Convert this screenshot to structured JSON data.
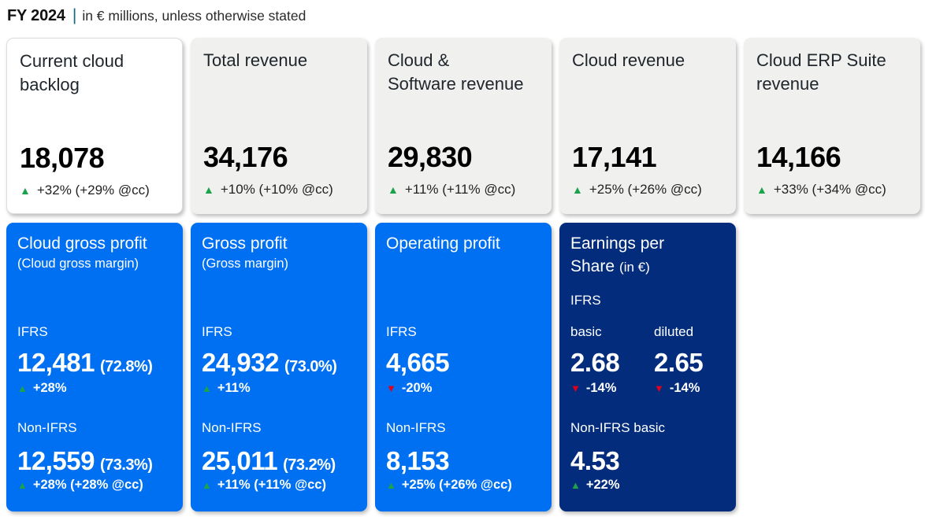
{
  "header": {
    "period": "FY 2024",
    "separator": "|",
    "subtitle": "in € millions, unless otherwise stated"
  },
  "colors": {
    "blue": "#0070f2",
    "navy": "#032c7d",
    "gray": "#f0f0ef",
    "green": "#1ca24a",
    "red": "#e0001b",
    "teal": "#17687a"
  },
  "icons": {
    "up": {
      "glyph": "▲",
      "color": "#1ca24a"
    },
    "down": {
      "glyph": "▼",
      "color": "#e0001b"
    }
  },
  "top_cards": [
    {
      "title": "Current cloud\nbacklog",
      "value": "18,078",
      "direction": "up",
      "change": "+32% (+29% @cc)"
    },
    {
      "title": "Total revenue",
      "value": "34,176",
      "direction": "up",
      "change": "+10% (+10% @cc)"
    },
    {
      "title": "Cloud &\nSoftware revenue",
      "value": "29,830",
      "direction": "up",
      "change": "+11% (+11% @cc)"
    },
    {
      "title": "Cloud revenue",
      "value": "17,141",
      "direction": "up",
      "change": "+25% (+26% @cc)"
    },
    {
      "title": "Cloud ERP Suite\nrevenue",
      "value": "14,166",
      "direction": "up",
      "change": "+33% (+34% @cc)"
    }
  ],
  "bottom_cards": [
    {
      "title": "Cloud gross profit",
      "subtitle": "(Cloud gross margin)",
      "ifrs": {
        "label": "IFRS",
        "value": "12,481",
        "margin": "(72.8%)",
        "direction": "up",
        "change": "+28%"
      },
      "non_ifrs": {
        "label": "Non-IFRS",
        "value": "12,559",
        "margin": "(73.3%)",
        "direction": "up",
        "change": "+28% (+28% @cc)"
      }
    },
    {
      "title": "Gross profit",
      "subtitle": "(Gross margin)",
      "ifrs": {
        "label": "IFRS",
        "value": "24,932",
        "margin": "(73.0%)",
        "direction": "up",
        "change": "+11%"
      },
      "non_ifrs": {
        "label": "Non-IFRS",
        "value": "25,011",
        "margin": "(73.2%)",
        "direction": "up",
        "change": "+11% (+11% @cc)"
      }
    },
    {
      "title": "Operating profit",
      "subtitle": "",
      "ifrs": {
        "label": "IFRS",
        "value": "4,665",
        "margin": "",
        "direction": "down",
        "change": "-20%"
      },
      "non_ifrs": {
        "label": "Non-IFRS",
        "value": "8,153",
        "margin": "",
        "direction": "up",
        "change": "+25% (+26% @cc)"
      }
    }
  ],
  "eps_card": {
    "title": "Earnings per\nShare",
    "unit": "(in €)",
    "ifrs_label": "IFRS",
    "basic": {
      "label": "basic",
      "value": "2.68",
      "direction": "down",
      "change": "-14%"
    },
    "diluted": {
      "label": "diluted",
      "value": "2.65",
      "direction": "down",
      "change": "-14%"
    },
    "non_ifrs": {
      "label": "Non-IFRS basic",
      "value": "4.53",
      "direction": "up",
      "change": "+22%"
    }
  },
  "chart_data": {
    "type": "table",
    "title": "FY 2024 | in € millions, unless otherwise stated",
    "metrics": [
      {
        "name": "Current cloud backlog",
        "value": 18078,
        "yoy_pct": 32,
        "yoy_cc_pct": 29
      },
      {
        "name": "Total revenue",
        "value": 34176,
        "yoy_pct": 10,
        "yoy_cc_pct": 10
      },
      {
        "name": "Cloud & Software revenue",
        "value": 29830,
        "yoy_pct": 11,
        "yoy_cc_pct": 11
      },
      {
        "name": "Cloud revenue",
        "value": 17141,
        "yoy_pct": 25,
        "yoy_cc_pct": 26
      },
      {
        "name": "Cloud ERP Suite revenue",
        "value": 14166,
        "yoy_pct": 33,
        "yoy_cc_pct": 34
      },
      {
        "name": "Cloud gross profit (IFRS)",
        "value": 12481,
        "margin_pct": 72.8,
        "yoy_pct": 28
      },
      {
        "name": "Cloud gross profit (Non-IFRS)",
        "value": 12559,
        "margin_pct": 73.3,
        "yoy_pct": 28,
        "yoy_cc_pct": 28
      },
      {
        "name": "Gross profit (IFRS)",
        "value": 24932,
        "margin_pct": 73.0,
        "yoy_pct": 11
      },
      {
        "name": "Gross profit (Non-IFRS)",
        "value": 25011,
        "margin_pct": 73.2,
        "yoy_pct": 11,
        "yoy_cc_pct": 11
      },
      {
        "name": "Operating profit (IFRS)",
        "value": 4665,
        "yoy_pct": -20
      },
      {
        "name": "Operating profit (Non-IFRS)",
        "value": 8153,
        "yoy_pct": 25,
        "yoy_cc_pct": 26
      },
      {
        "name": "EPS basic IFRS (in €)",
        "value": 2.68,
        "yoy_pct": -14
      },
      {
        "name": "EPS diluted IFRS (in €)",
        "value": 2.65,
        "yoy_pct": -14
      },
      {
        "name": "EPS basic Non-IFRS (in €)",
        "value": 4.53,
        "yoy_pct": 22
      }
    ]
  }
}
